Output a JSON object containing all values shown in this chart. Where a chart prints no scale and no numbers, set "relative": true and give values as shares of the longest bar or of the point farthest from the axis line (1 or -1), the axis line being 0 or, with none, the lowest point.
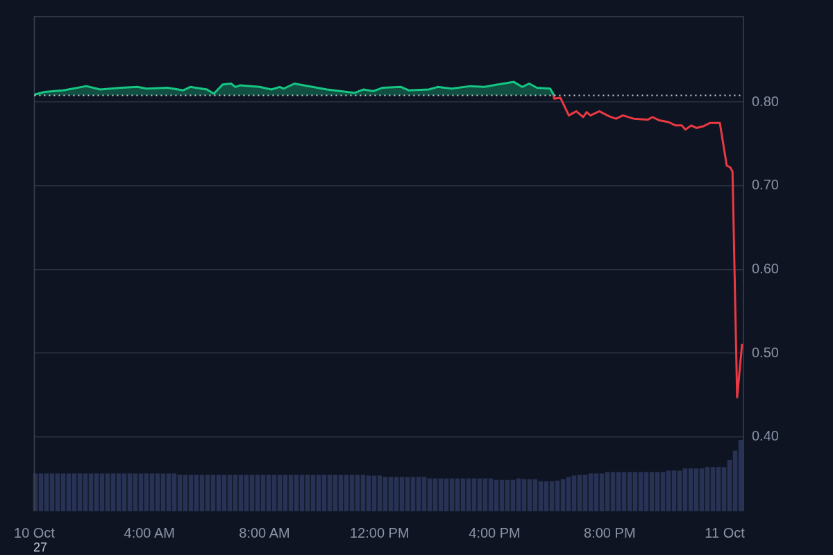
{
  "chart_data": [
    {
      "type": "line",
      "xlim": [
        0,
        24.65
      ],
      "ylim": [
        0.311,
        0.902
      ],
      "xticks": [
        {
          "value": 0,
          "label": "10 Oct"
        },
        {
          "value": 4,
          "label": "4:00 AM"
        },
        {
          "value": 8,
          "label": "8:00 AM"
        },
        {
          "value": 12,
          "label": "12:00 PM"
        },
        {
          "value": 16,
          "label": "4:00 PM"
        },
        {
          "value": 20,
          "label": "8:00 PM"
        },
        {
          "value": 24,
          "label": "11 Oct"
        }
      ],
      "yticks": [
        {
          "value": 0.4,
          "label": "0.40"
        },
        {
          "value": 0.5,
          "label": "0.50"
        },
        {
          "value": 0.6,
          "label": "0.60"
        },
        {
          "value": 0.7,
          "label": "0.70"
        },
        {
          "value": 0.8,
          "label": "0.80"
        }
      ],
      "grid": "y",
      "legend": false,
      "marker": "none",
      "line_style": "solid",
      "ref_lines": [
        {
          "axis": "y",
          "value": 0.808,
          "color": "#c8ccd4",
          "line_style": "dotted"
        }
      ],
      "annotations": [
        "27"
      ],
      "series": [
        {
          "type": "area",
          "color": "#16c784",
          "x": [
            0,
            0.36,
            1.01,
            1.81,
            2.29,
            3.01,
            3.59,
            3.9,
            4.63,
            5.18,
            5.42,
            6,
            6.24,
            6.55,
            6.84,
            6.99,
            7.16,
            7.83,
            8.24,
            8.53,
            8.67,
            9.04,
            9.2,
            10.17,
            11.13,
            11.45,
            11.78,
            12.1,
            12.75,
            13.01,
            13.71,
            14.02,
            14.51,
            15.16,
            15.64,
            16.12,
            16.67,
            16.96,
            17.2,
            17.47,
            17.93,
            18.05
          ],
          "values": [
            0.809,
            0.812,
            0.814,
            0.819,
            0.815,
            0.817,
            0.818,
            0.816,
            0.817,
            0.814,
            0.818,
            0.815,
            0.81,
            0.821,
            0.822,
            0.818,
            0.82,
            0.818,
            0.815,
            0.818,
            0.816,
            0.822,
            0.821,
            0.815,
            0.811,
            0.815,
            0.813,
            0.817,
            0.818,
            0.814,
            0.815,
            0.818,
            0.816,
            0.819,
            0.818,
            0.821,
            0.824,
            0.818,
            0.822,
            0.817,
            0.816,
            0.809
          ]
        },
        {
          "type": "line",
          "color": "#ea3943",
          "x": [
            18.05,
            18.07,
            18.29,
            18.58,
            18.84,
            19.08,
            19.2,
            19.33,
            19.64,
            19.98,
            20.22,
            20.46,
            20.84,
            21.33,
            21.49,
            21.73,
            22.05,
            22.29,
            22.51,
            22.63,
            22.84,
            23.01,
            23.25,
            23.49,
            23.83,
            24.07,
            24.19,
            24.27,
            24.43,
            24.6
          ],
          "values": [
            0.808,
            0.804,
            0.805,
            0.784,
            0.789,
            0.782,
            0.788,
            0.784,
            0.789,
            0.783,
            0.78,
            0.784,
            0.78,
            0.779,
            0.782,
            0.778,
            0.776,
            0.772,
            0.772,
            0.767,
            0.772,
            0.769,
            0.771,
            0.775,
            0.775,
            0.724,
            0.722,
            0.717,
            0.447,
            0.51
          ]
        }
      ]
    },
    {
      "type": "bar",
      "relative": true,
      "tick_labels": false,
      "grid": false,
      "legend": false,
      "color": "#283255",
      "categories": [
        null,
        null,
        null,
        null,
        null,
        null,
        null,
        null,
        null,
        null,
        null,
        null,
        null,
        null,
        null,
        null,
        null,
        null,
        null,
        null,
        null,
        null,
        null,
        null,
        null,
        null,
        null,
        null,
        null,
        null,
        null,
        null,
        null,
        null,
        null,
        null,
        null,
        null,
        null,
        null,
        null,
        null,
        null,
        null,
        null,
        null,
        null,
        null,
        null,
        null,
        null,
        null,
        null,
        null,
        null,
        null,
        null,
        null,
        null,
        null,
        null,
        null,
        null,
        null,
        null,
        null,
        null,
        null,
        null,
        null,
        null,
        null,
        null,
        null,
        null,
        null,
        null,
        null,
        null,
        null,
        null,
        null,
        null,
        null,
        null,
        null,
        null,
        null,
        null,
        null,
        null,
        null,
        null,
        null,
        null,
        null,
        null,
        null,
        null,
        null,
        null,
        null,
        null,
        null,
        null,
        null,
        null,
        null,
        null,
        null,
        null,
        null,
        null,
        null,
        null,
        null,
        null,
        null,
        null,
        null,
        null,
        null,
        null,
        null,
        null,
        null,
        null,
        null
      ],
      "values": [
        0.53,
        0.53,
        0.53,
        0.53,
        0.53,
        0.53,
        0.53,
        0.53,
        0.53,
        0.53,
        0.53,
        0.53,
        0.53,
        0.53,
        0.53,
        0.53,
        0.53,
        0.53,
        0.53,
        0.53,
        0.53,
        0.53,
        0.53,
        0.53,
        0.53,
        0.53,
        0.51,
        0.51,
        0.51,
        0.51,
        0.51,
        0.51,
        0.51,
        0.51,
        0.51,
        0.51,
        0.51,
        0.51,
        0.51,
        0.51,
        0.51,
        0.51,
        0.51,
        0.51,
        0.51,
        0.51,
        0.51,
        0.51,
        0.51,
        0.51,
        0.51,
        0.51,
        0.51,
        0.51,
        0.51,
        0.51,
        0.51,
        0.51,
        0.51,
        0.51,
        0.5,
        0.5,
        0.5,
        0.48,
        0.48,
        0.48,
        0.48,
        0.48,
        0.48,
        0.48,
        0.48,
        0.46,
        0.46,
        0.46,
        0.46,
        0.46,
        0.46,
        0.46,
        0.46,
        0.46,
        0.46,
        0.46,
        0.46,
        0.44,
        0.44,
        0.44,
        0.44,
        0.46,
        0.45,
        0.45,
        0.45,
        0.42,
        0.42,
        0.42,
        0.43,
        0.45,
        0.48,
        0.5,
        0.51,
        0.51,
        0.53,
        0.53,
        0.53,
        0.55,
        0.55,
        0.55,
        0.55,
        0.55,
        0.55,
        0.55,
        0.55,
        0.55,
        0.55,
        0.55,
        0.57,
        0.57,
        0.57,
        0.6,
        0.6,
        0.6,
        0.6,
        0.62,
        0.62,
        0.62,
        0.62,
        0.72,
        0.85,
        1
      ]
    }
  ]
}
